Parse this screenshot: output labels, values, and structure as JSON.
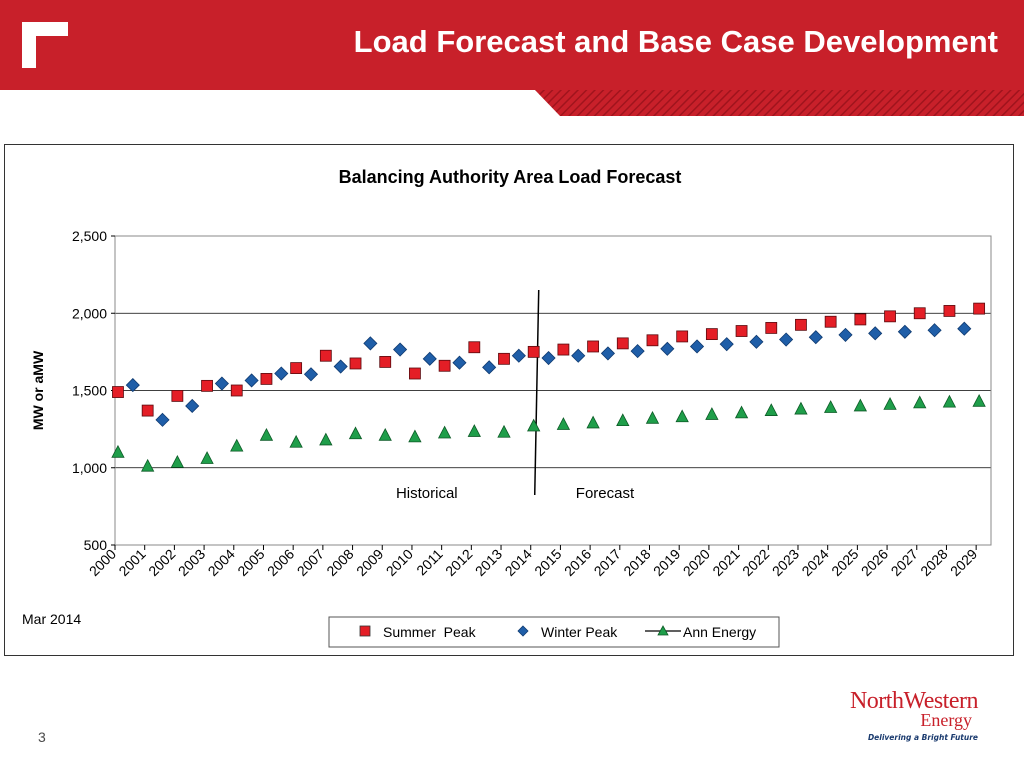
{
  "slide": {
    "title": "Load Forecast and Base Case Development",
    "date_note": "Mar 2014",
    "page_number": "3",
    "colors": {
      "header": "#c8202a",
      "summer": "#e41e26",
      "winter": "#1f5ea8",
      "annual": "#1f9e4a"
    }
  },
  "brand": {
    "name": "NorthWestern",
    "sub": "Energy",
    "tagline": "Delivering a Bright Future"
  },
  "chart_data": {
    "type": "scatter",
    "title": "Balancing Authority  Area Load Forecast",
    "xlabel": "",
    "ylabel": "MW or aMW",
    "ylim": [
      500,
      2500
    ],
    "yticks": [
      500,
      1000,
      1500,
      2000,
      2500
    ],
    "ytick_labels": [
      "500",
      "1,000",
      "1,500",
      "2,000",
      "2,500"
    ],
    "xlim": [
      2000,
      2029
    ],
    "categories": [
      "2000",
      "2001",
      "2002",
      "2003",
      "2004",
      "2005",
      "2006",
      "2007",
      "2008",
      "2009",
      "2010",
      "2011",
      "2012",
      "2013",
      "2014",
      "2015",
      "2016",
      "2017",
      "2018",
      "2019",
      "2020",
      "2021",
      "2022",
      "2023",
      "2024",
      "2025",
      "2026",
      "2027",
      "2028",
      "2029"
    ],
    "grid": true,
    "legend_position": "bottom-center",
    "divider_year": 2014,
    "annotations": [
      "Historical",
      "Forecast"
    ],
    "series": [
      {
        "name": "Summer  Peak",
        "marker": "square",
        "color": "#e41e26",
        "points": [
          [
            2000.1,
            1490
          ],
          [
            2001.1,
            1370
          ],
          [
            2002.1,
            1465
          ],
          [
            2003.1,
            1530
          ],
          [
            2004.1,
            1500
          ],
          [
            2005.1,
            1575
          ],
          [
            2006.1,
            1645
          ],
          [
            2007.1,
            1725
          ],
          [
            2008.1,
            1675
          ],
          [
            2009.1,
            1685
          ],
          [
            2010.1,
            1610
          ],
          [
            2011.1,
            1660
          ],
          [
            2012.1,
            1780
          ],
          [
            2013.1,
            1705
          ],
          [
            2014.1,
            1750
          ],
          [
            2015.1,
            1765
          ],
          [
            2016.1,
            1785
          ],
          [
            2017.1,
            1805
          ],
          [
            2018.1,
            1825
          ],
          [
            2019.1,
            1850
          ],
          [
            2020.1,
            1865
          ],
          [
            2021.1,
            1885
          ],
          [
            2022.1,
            1905
          ],
          [
            2023.1,
            1925
          ],
          [
            2024.1,
            1945
          ],
          [
            2025.1,
            1960
          ],
          [
            2026.1,
            1980
          ],
          [
            2027.1,
            2000
          ],
          [
            2028.1,
            2015
          ],
          [
            2029.1,
            2030
          ]
        ]
      },
      {
        "name": "Winter Peak",
        "marker": "diamond",
        "color": "#1f5ea8",
        "points": [
          [
            2000.6,
            1535
          ],
          [
            2001.6,
            1310
          ],
          [
            2002.6,
            1400
          ],
          [
            2003.6,
            1545
          ],
          [
            2004.6,
            1565
          ],
          [
            2005.6,
            1610
          ],
          [
            2006.6,
            1605
          ],
          [
            2007.6,
            1655
          ],
          [
            2008.6,
            1805
          ],
          [
            2009.6,
            1765
          ],
          [
            2010.6,
            1705
          ],
          [
            2011.6,
            1680
          ],
          [
            2012.6,
            1650
          ],
          [
            2013.6,
            1725
          ],
          [
            2014.6,
            1710
          ],
          [
            2015.6,
            1725
          ],
          [
            2016.6,
            1740
          ],
          [
            2017.6,
            1755
          ],
          [
            2018.6,
            1770
          ],
          [
            2019.6,
            1785
          ],
          [
            2020.6,
            1800
          ],
          [
            2021.6,
            1815
          ],
          [
            2022.6,
            1830
          ],
          [
            2023.6,
            1845
          ],
          [
            2024.6,
            1860
          ],
          [
            2025.6,
            1870
          ],
          [
            2026.6,
            1880
          ],
          [
            2027.6,
            1890
          ],
          [
            2028.6,
            1900
          ]
        ]
      },
      {
        "name": "Ann Energy",
        "marker": "triangle",
        "color": "#1f9e4a",
        "points": [
          [
            2000.1,
            1100
          ],
          [
            2001.1,
            1010
          ],
          [
            2002.1,
            1035
          ],
          [
            2003.1,
            1060
          ],
          [
            2004.1,
            1140
          ],
          [
            2005.1,
            1210
          ],
          [
            2006.1,
            1165
          ],
          [
            2007.1,
            1180
          ],
          [
            2008.1,
            1220
          ],
          [
            2009.1,
            1210
          ],
          [
            2010.1,
            1200
          ],
          [
            2011.1,
            1225
          ],
          [
            2012.1,
            1235
          ],
          [
            2013.1,
            1230
          ],
          [
            2014.1,
            1270
          ],
          [
            2015.1,
            1280
          ],
          [
            2016.1,
            1290
          ],
          [
            2017.1,
            1305
          ],
          [
            2018.1,
            1320
          ],
          [
            2019.1,
            1330
          ],
          [
            2020.1,
            1345
          ],
          [
            2021.1,
            1355
          ],
          [
            2022.1,
            1370
          ],
          [
            2023.1,
            1380
          ],
          [
            2024.1,
            1390
          ],
          [
            2025.1,
            1400
          ],
          [
            2026.1,
            1410
          ],
          [
            2027.1,
            1420
          ],
          [
            2028.1,
            1425
          ],
          [
            2029.1,
            1430
          ]
        ]
      }
    ]
  }
}
